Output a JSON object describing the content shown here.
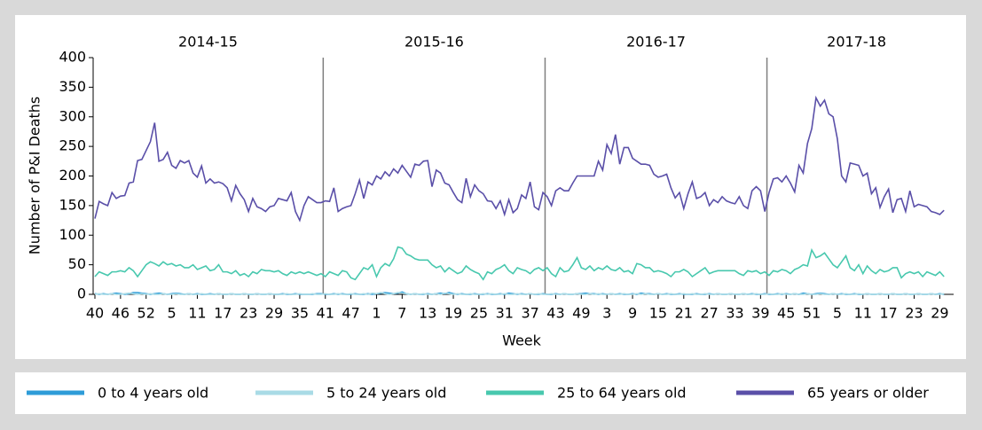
{
  "chart_data": {
    "type": "line",
    "y_label": "Number of P&I Deaths",
    "x_label": "Week",
    "panel_labels": [
      "2014-15",
      "2015-16",
      "2016-17",
      "2017-18"
    ],
    "ylim": [
      0,
      400
    ],
    "yticks": [
      0,
      50,
      100,
      150,
      200,
      250,
      300,
      350,
      400
    ],
    "categories": [
      "40",
      null,
      null,
      null,
      null,
      null,
      "46",
      null,
      null,
      null,
      null,
      null,
      "52",
      null,
      null,
      null,
      null,
      null,
      "5",
      null,
      null,
      null,
      null,
      null,
      "11",
      null,
      null,
      null,
      null,
      null,
      "17",
      null,
      null,
      null,
      null,
      null,
      "23",
      null,
      null,
      null,
      null,
      null,
      "29",
      null,
      null,
      null,
      null,
      null,
      "35",
      null,
      null,
      null,
      null,
      null,
      "41",
      null,
      null,
      null,
      null,
      null,
      "47",
      null,
      null,
      null,
      null,
      null,
      "1",
      null,
      null,
      null,
      null,
      null,
      "7",
      null,
      null,
      null,
      null,
      null,
      "13",
      null,
      null,
      null,
      null,
      null,
      "19",
      null,
      null,
      null,
      null,
      null,
      "25",
      null,
      null,
      null,
      null,
      null,
      "31",
      null,
      null,
      null,
      null,
      null,
      "37",
      null,
      null,
      null,
      null,
      null,
      "43",
      null,
      null,
      null,
      null,
      null,
      "49",
      null,
      null,
      null,
      null,
      null,
      "3",
      null,
      null,
      null,
      null,
      null,
      "9",
      null,
      null,
      null,
      null,
      null,
      "15",
      null,
      null,
      null,
      null,
      null,
      "21",
      null,
      null,
      null,
      null,
      null,
      "27",
      null,
      null,
      null,
      null,
      null,
      "33",
      null,
      null,
      null,
      null,
      null,
      "39",
      null,
      null,
      null,
      null,
      null,
      "45",
      null,
      null,
      null,
      null,
      null,
      "51",
      null,
      null,
      null,
      null,
      null,
      "5",
      null,
      null,
      null,
      null,
      null,
      "11",
      null,
      null,
      null,
      null,
      null,
      "17",
      null,
      null,
      null,
      null,
      null,
      "23",
      null,
      null,
      null,
      null,
      null,
      "29",
      null
    ],
    "series": [
      {
        "name": "0 to 4 years old",
        "color": "#2e9cd8",
        "values": [
          1,
          0,
          1,
          0,
          1,
          2,
          1,
          0,
          1,
          3,
          3,
          2,
          1,
          0,
          1,
          2,
          1,
          0,
          1,
          2,
          1,
          0,
          1,
          0,
          1,
          0,
          0,
          1,
          0,
          1,
          0,
          0,
          1,
          0,
          0,
          1,
          0,
          0,
          1,
          0,
          0,
          1,
          0,
          0,
          1,
          0,
          0,
          1,
          0,
          0,
          0,
          0,
          1,
          1,
          0,
          0,
          1,
          0,
          1,
          0,
          0,
          1,
          0,
          0,
          1,
          0,
          1,
          2,
          3,
          2,
          1,
          2,
          4,
          1,
          0,
          1,
          0,
          0,
          1,
          0,
          1,
          2,
          1,
          3,
          1,
          0,
          1,
          0,
          0,
          1,
          0,
          0,
          1,
          0,
          0,
          1,
          0,
          2,
          1,
          0,
          1,
          0,
          1,
          0,
          0,
          1,
          0,
          0,
          1,
          0,
          1,
          0,
          0,
          1,
          1,
          2,
          1,
          1,
          0,
          1,
          0,
          1,
          0,
          1,
          0,
          0,
          1,
          0,
          2,
          1,
          1,
          0,
          1,
          0,
          1,
          0,
          0,
          1,
          0,
          0,
          0,
          1,
          0,
          0,
          1,
          0,
          1,
          0,
          0,
          1,
          0,
          0,
          1,
          0,
          1,
          0,
          0,
          1,
          0,
          0,
          1,
          0,
          1,
          0,
          1,
          0,
          2,
          1,
          0,
          1,
          2,
          1,
          0,
          1,
          0,
          1,
          0,
          0,
          1,
          0,
          0,
          1,
          0,
          0,
          1,
          0,
          0,
          1,
          0,
          0,
          1,
          0,
          0,
          1,
          0,
          0,
          1,
          0,
          1,
          0
        ]
      },
      {
        "name": "5 to 24 years old",
        "color": "#a9dbe6",
        "values": [
          0,
          1,
          0,
          0,
          1,
          0,
          0,
          1,
          2,
          1,
          0,
          1,
          0,
          1,
          0,
          0,
          1,
          0,
          0,
          1,
          0,
          0,
          1,
          0,
          0,
          1,
          0,
          0,
          0,
          1,
          0,
          0,
          1,
          0,
          0,
          1,
          0,
          0,
          1,
          0,
          0,
          1,
          0,
          0,
          0,
          1,
          0,
          0,
          1,
          0,
          0,
          1,
          0,
          0,
          1,
          0,
          0,
          1,
          0,
          0,
          1,
          0,
          0,
          1,
          0,
          2,
          1,
          3,
          1,
          0,
          1,
          3,
          2,
          1,
          0,
          1,
          0,
          1,
          0,
          0,
          1,
          0,
          2,
          1,
          0,
          1,
          0,
          0,
          1,
          0,
          0,
          1,
          0,
          1,
          0,
          0,
          1,
          0,
          0,
          1,
          0,
          0,
          1,
          0,
          1,
          0,
          0,
          1,
          0,
          0,
          1,
          0,
          0,
          1,
          0,
          0,
          1,
          0,
          1,
          0,
          0,
          1,
          0,
          0,
          1,
          0,
          0,
          1,
          0,
          1,
          0,
          0,
          1,
          0,
          0,
          1,
          0,
          0,
          1,
          0,
          1,
          0,
          0,
          1,
          0,
          0,
          1,
          0,
          0,
          1,
          0,
          0,
          1,
          0,
          0,
          1,
          0,
          0,
          1,
          0,
          0,
          1,
          0,
          0,
          1,
          0,
          0,
          1,
          0,
          0,
          1,
          0,
          0,
          1,
          0,
          0,
          1,
          0,
          0,
          1,
          0,
          1,
          0,
          0,
          1,
          0,
          0,
          1,
          0,
          0,
          1,
          0,
          0,
          1,
          0,
          0,
          1,
          0,
          0,
          1
        ]
      },
      {
        "name": "25 to 64 years old",
        "color": "#48c8ae",
        "values": [
          30,
          38,
          35,
          32,
          38,
          38,
          40,
          38,
          45,
          40,
          30,
          40,
          50,
          55,
          52,
          48,
          55,
          50,
          52,
          48,
          50,
          45,
          45,
          50,
          42,
          45,
          48,
          40,
          42,
          50,
          38,
          38,
          35,
          40,
          32,
          35,
          30,
          38,
          35,
          42,
          40,
          40,
          38,
          40,
          35,
          32,
          38,
          35,
          38,
          35,
          38,
          35,
          32,
          35,
          30,
          38,
          35,
          32,
          40,
          38,
          28,
          25,
          35,
          45,
          42,
          50,
          30,
          45,
          52,
          48,
          60,
          80,
          78,
          68,
          65,
          60,
          58,
          58,
          58,
          50,
          45,
          48,
          38,
          45,
          40,
          35,
          38,
          48,
          42,
          38,
          35,
          25,
          38,
          35,
          42,
          45,
          50,
          40,
          35,
          45,
          42,
          40,
          35,
          42,
          45,
          40,
          45,
          35,
          30,
          45,
          38,
          40,
          50,
          62,
          45,
          42,
          48,
          40,
          45,
          42,
          48,
          42,
          40,
          45,
          38,
          40,
          35,
          52,
          50,
          45,
          45,
          38,
          40,
          38,
          35,
          30,
          38,
          38,
          42,
          38,
          30,
          35,
          40,
          45,
          35,
          38,
          40,
          40,
          40,
          40,
          40,
          35,
          32,
          40,
          38,
          40,
          35,
          38,
          32,
          40,
          38,
          42,
          40,
          35,
          42,
          45,
          50,
          48,
          75,
          62,
          65,
          70,
          60,
          50,
          45,
          55,
          65,
          45,
          40,
          50,
          35,
          48,
          40,
          35,
          42,
          38,
          40,
          45,
          45,
          28,
          35,
          38,
          35,
          38,
          30,
          38,
          35,
          32,
          38,
          30
        ]
      },
      {
        "name": "65 years or older",
        "color": "#5a4fa8",
        "values": [
          128,
          157,
          153,
          150,
          172,
          162,
          166,
          167,
          188,
          190,
          226,
          228,
          243,
          258,
          290,
          225,
          228,
          240,
          218,
          213,
          226,
          222,
          226,
          205,
          198,
          217,
          188,
          195,
          188,
          190,
          187,
          180,
          158,
          184,
          170,
          160,
          140,
          162,
          148,
          145,
          140,
          148,
          150,
          162,
          160,
          158,
          172,
          140,
          125,
          150,
          165,
          160,
          155,
          155,
          158,
          157,
          180,
          140,
          145,
          148,
          150,
          170,
          193,
          162,
          190,
          185,
          200,
          195,
          207,
          200,
          212,
          205,
          218,
          208,
          198,
          220,
          218,
          225,
          226,
          182,
          210,
          205,
          188,
          185,
          172,
          160,
          155,
          196,
          165,
          185,
          175,
          170,
          158,
          157,
          145,
          158,
          135,
          160,
          138,
          145,
          168,
          162,
          190,
          148,
          143,
          172,
          165,
          150,
          175,
          180,
          175,
          175,
          188,
          200,
          200,
          200,
          200,
          200,
          225,
          210,
          253,
          238,
          270,
          220,
          248,
          248,
          230,
          225,
          220,
          220,
          218,
          203,
          198,
          200,
          203,
          180,
          163,
          172,
          145,
          170,
          190,
          162,
          165,
          172,
          150,
          160,
          155,
          165,
          158,
          155,
          153,
          165,
          150,
          145,
          175,
          182,
          175,
          140,
          172,
          195,
          197,
          190,
          200,
          188,
          173,
          218,
          205,
          255,
          280,
          332,
          318,
          328,
          305,
          300,
          263,
          200,
          190,
          222,
          220,
          218,
          200,
          205,
          170,
          180,
          147,
          165,
          178,
          138,
          160,
          162,
          140,
          175,
          148,
          152,
          150,
          148,
          140,
          138,
          135,
          142
        ]
      }
    ]
  }
}
